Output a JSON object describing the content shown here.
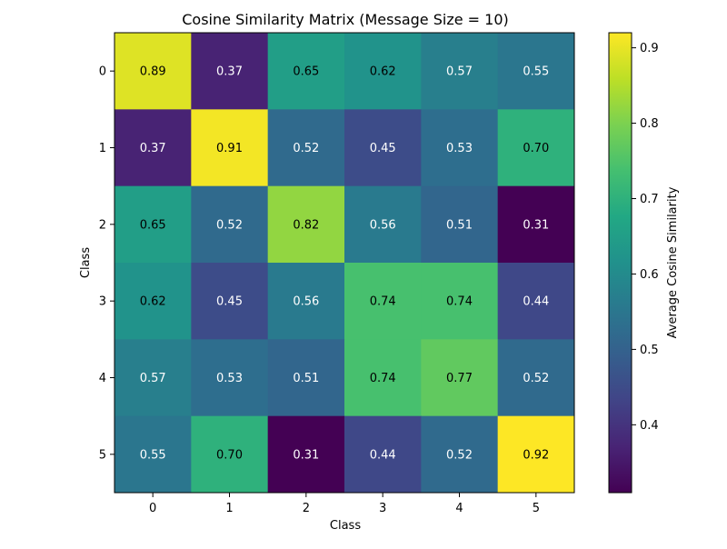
{
  "chart_data": {
    "type": "heatmap",
    "title": "Cosine Similarity Matrix (Message Size = 10)",
    "xlabel": "Class",
    "ylabel": "Class",
    "x_categories": [
      "0",
      "1",
      "2",
      "3",
      "4",
      "5"
    ],
    "y_categories": [
      "0",
      "1",
      "2",
      "3",
      "4",
      "5"
    ],
    "values": [
      [
        0.89,
        0.37,
        0.65,
        0.62,
        0.57,
        0.55
      ],
      [
        0.37,
        0.91,
        0.52,
        0.45,
        0.53,
        0.7
      ],
      [
        0.65,
        0.52,
        0.82,
        0.56,
        0.51,
        0.31
      ],
      [
        0.62,
        0.45,
        0.56,
        0.74,
        0.74,
        0.44
      ],
      [
        0.57,
        0.53,
        0.51,
        0.74,
        0.77,
        0.52
      ],
      [
        0.55,
        0.7,
        0.31,
        0.44,
        0.52,
        0.92
      ]
    ],
    "colormap": "viridis",
    "vmin": 0.31,
    "vmax": 0.92,
    "colorbar": {
      "label": "Average Cosine Similarity",
      "ticks": [
        0.4,
        0.5,
        0.6,
        0.7,
        0.8,
        0.9
      ],
      "tick_labels": [
        "0.4",
        "0.5",
        "0.6",
        "0.7",
        "0.8",
        "0.9"
      ]
    }
  }
}
